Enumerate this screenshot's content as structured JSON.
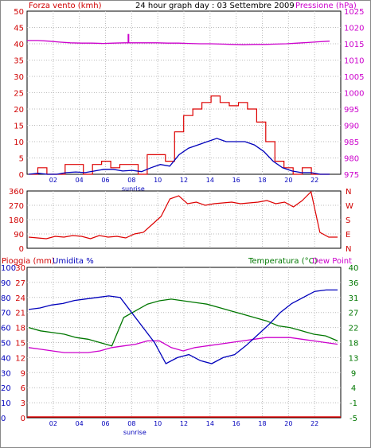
{
  "chart_data": [
    {
      "type": "line",
      "title": "24 hour graph day : 03 Settembre 2009",
      "left_axis_label": "Forza vento (kmh)",
      "right_axis_label": "Pressione (hPa)",
      "left_ylim": [
        0,
        50
      ],
      "right_ylim": [
        975,
        1025
      ],
      "left_ticks": [
        "0",
        "5",
        "10",
        "15",
        "20",
        "25",
        "30",
        "35",
        "40",
        "45",
        "50"
      ],
      "right_ticks": [
        "975",
        "980",
        "985",
        "990",
        "995",
        "1000",
        "1005",
        "1010",
        "1015",
        "1020",
        "1025"
      ],
      "x_ticks": [
        "02",
        "04",
        "06",
        "08",
        "10",
        "12",
        "14",
        "16",
        "18",
        "20",
        "22"
      ],
      "x_annotation": "sunrise",
      "grid": true,
      "colors": {
        "wind": "#dd0000",
        "avg_wind": "#0000bb",
        "pressure": "#cc00cc"
      },
      "series": [
        {
          "axis": "right",
          "values": [
            1016,
            1016,
            1015.8,
            1015.5,
            1015.3,
            1015.2,
            1015.2,
            1015.1,
            1015.2,
            1015.3,
            1015.3,
            1015.3,
            1015.3,
            1015.2,
            1015.2,
            1015.1,
            1015.0,
            1015.0,
            1014.9,
            1014.8,
            1014.7,
            1014.8,
            1014.8,
            1014.9,
            1015.0,
            1015.2,
            1015.4,
            1015.6,
            1015.8
          ]
        },
        {
          "axis": "left",
          "values": [
            0,
            2,
            0,
            0,
            3,
            3,
            0,
            3,
            4,
            2,
            3,
            3,
            0,
            6,
            6,
            4,
            13,
            18,
            20,
            22,
            24,
            22,
            21,
            22,
            20,
            16,
            10,
            4,
            2,
            0,
            2,
            0,
            0
          ]
        },
        {
          "axis": "left",
          "values": [
            0,
            0.3,
            0,
            0,
            0.5,
            0.7,
            0.5,
            1,
            1.5,
            1.5,
            1,
            1.2,
            0.8,
            2,
            3,
            2.5,
            6,
            8,
            9,
            10,
            11,
            10,
            10,
            10,
            9,
            7,
            4,
            2,
            1,
            0.5,
            0.5,
            0,
            0
          ]
        }
      ]
    },
    {
      "type": "line",
      "left_ticks": [
        "0",
        "90",
        "180",
        "270",
        "360"
      ],
      "right_ticks": [
        "N",
        "E",
        "S",
        "W",
        "N"
      ],
      "ylim": [
        0,
        360
      ],
      "x_ticks": [
        "02",
        "04",
        "06",
        "08",
        "10",
        "12",
        "14",
        "16",
        "18",
        "20",
        "22"
      ],
      "color": "#dd0000",
      "values": [
        70,
        65,
        60,
        75,
        70,
        80,
        75,
        60,
        80,
        70,
        75,
        65,
        90,
        100,
        150,
        200,
        310,
        330,
        280,
        290,
        270,
        280,
        285,
        290,
        280,
        285,
        290,
        300,
        280,
        290,
        260,
        300,
        355,
        100,
        70,
        70
      ]
    },
    {
      "type": "line",
      "rain_label": "Pioggia (mm)",
      "humidity_label": "Umidita %",
      "temperature_label": "Temperatura (°C)",
      "dewpoint_label": "Dew Point",
      "rain_ticks": [
        "0",
        "3",
        "6",
        "9",
        "12",
        "15",
        "18",
        "21",
        "24",
        "27",
        "30"
      ],
      "humidity_ticks": [
        "0",
        "10",
        "20",
        "30",
        "40",
        "50",
        "60",
        "70",
        "80",
        "90",
        "100"
      ],
      "temperature_ticks": [
        "-5",
        "-1",
        "4",
        "9",
        "13",
        "18",
        "22",
        "27",
        "31",
        "36",
        "40"
      ],
      "temperature_ylim": [
        -5,
        40
      ],
      "humidity_ylim": [
        0,
        100
      ],
      "x_ticks": [
        "02",
        "04",
        "06",
        "08",
        "10",
        "12",
        "14",
        "16",
        "18",
        "20",
        "22"
      ],
      "x_annotation": "sunrise",
      "colors": {
        "humidity": "#0000bb",
        "temperature": "#007700",
        "dewpoint": "#cc00cc",
        "rain": "#dd0000"
      },
      "series": [
        {
          "name": "Umidita %",
          "values": [
            72,
            73,
            75,
            76,
            78,
            79,
            80,
            81,
            80,
            70,
            60,
            50,
            36,
            40,
            42,
            38,
            36,
            40,
            42,
            48,
            55,
            62,
            70,
            76,
            80,
            84,
            85,
            85
          ]
        },
        {
          "name": "Temperatura (°C)",
          "values": [
            22,
            21,
            20.5,
            20,
            19,
            18.5,
            17.5,
            16.5,
            25,
            27,
            29,
            30,
            30.5,
            30,
            29.5,
            29,
            28,
            27,
            26,
            25,
            24,
            22.5,
            22,
            21,
            20,
            19.5,
            18
          ]
        },
        {
          "name": "Dew Point",
          "values": [
            16,
            15.5,
            15,
            14.5,
            14.5,
            14.5,
            15,
            16,
            16.5,
            17,
            18,
            18,
            16,
            15,
            16,
            16.5,
            17,
            17.5,
            18,
            18.5,
            19,
            19,
            19,
            18.5,
            18,
            17.5,
            17
          ]
        },
        {
          "name": "Pioggia (mm)",
          "values": [
            0,
            0
          ]
        }
      ]
    }
  ]
}
